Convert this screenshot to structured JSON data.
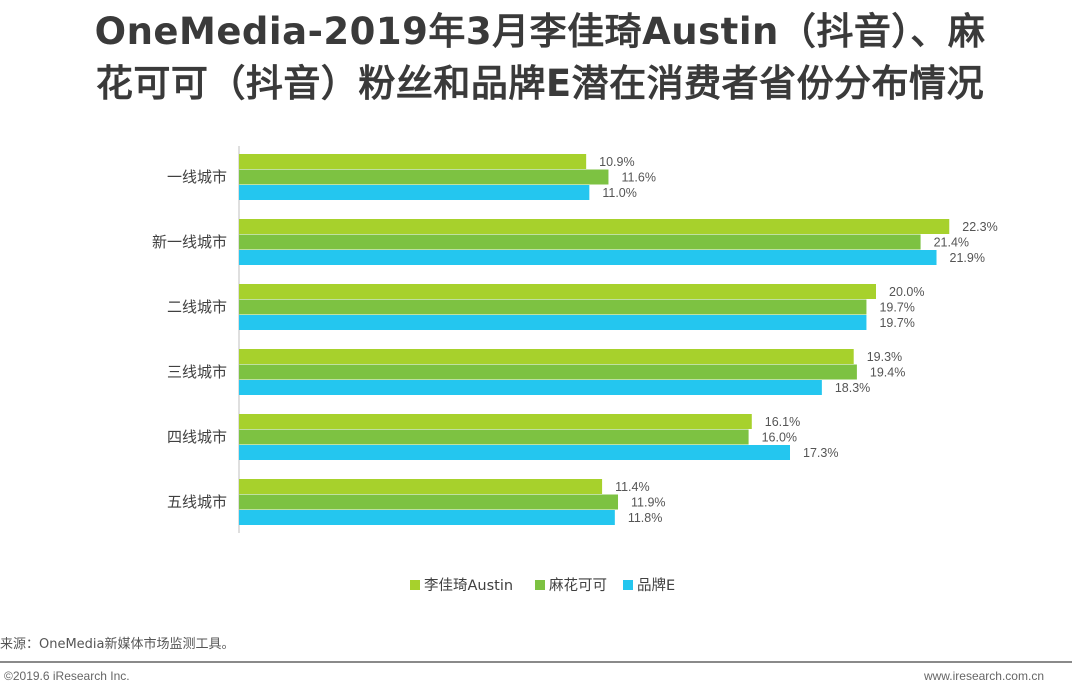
{
  "title": {
    "line1": "OneMedia-2019年3月李佳琦Austin（抖音）、麻",
    "line2": "花可可（抖音）粉丝和品牌E潜在消费者省份分布情况"
  },
  "chart_data": {
    "type": "bar",
    "orientation": "horizontal",
    "categories": [
      "一线城市",
      "新一线城市",
      "二线城市",
      "三线城市",
      "四线城市",
      "五线城市"
    ],
    "series": [
      {
        "name": "李佳琦Austin",
        "color": "#a7d12c",
        "values": [
          10.9,
          22.3,
          20.0,
          19.3,
          16.1,
          11.4
        ]
      },
      {
        "name": "麻花可可",
        "color": "#7dc242",
        "values": [
          11.6,
          21.4,
          19.7,
          19.4,
          16.0,
          11.9
        ]
      },
      {
        "name": "品牌E",
        "color": "#24c6ef",
        "values": [
          11.0,
          21.9,
          19.7,
          18.3,
          17.3,
          11.8
        ]
      }
    ],
    "value_suffix": "%",
    "xlim": [
      0,
      25
    ],
    "grid": false,
    "legend_position": "bottom"
  },
  "footer": {
    "source": "来源：OneMedia新媒体市场监测工具。",
    "copyright": "©2019.6 iResearch Inc.",
    "website": "www.iresearch.com.cn"
  }
}
